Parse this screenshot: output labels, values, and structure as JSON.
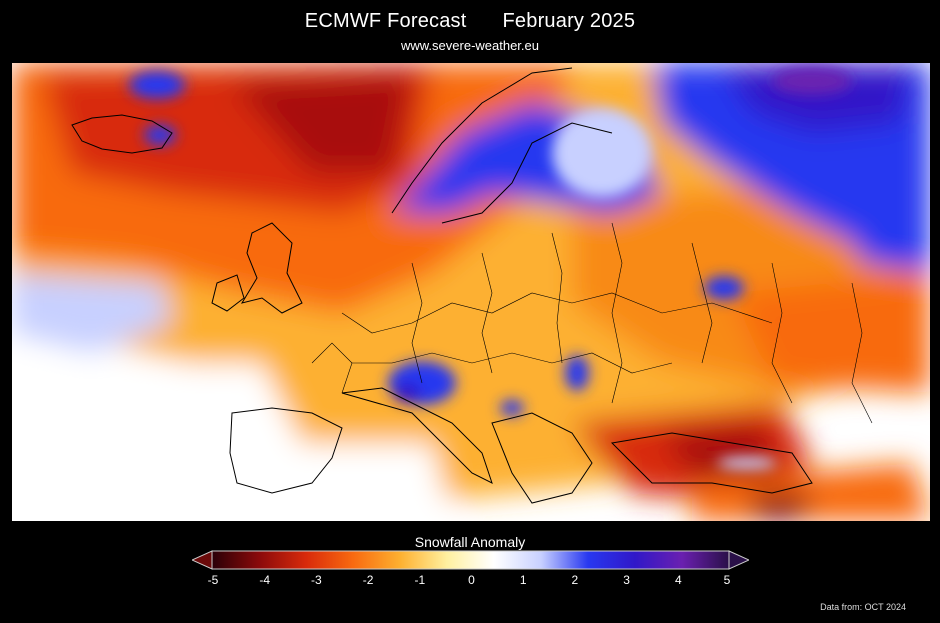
{
  "header": {
    "title": "ECMWF Forecast",
    "period": "February 2025",
    "site": "www.severe-weather.eu"
  },
  "map": {
    "variable": "Snowfall Anomaly",
    "region": "Europe",
    "background_color": "#ffffff",
    "border_color": "#000000"
  },
  "legend": {
    "title": "Snowfall Anomaly",
    "ticks": [
      "-5",
      "-4",
      "-3",
      "-2",
      "-1",
      "0",
      "1",
      "2",
      "3",
      "4",
      "5"
    ],
    "range": [
      -5,
      5
    ],
    "colors": [
      "#2a0008",
      "#8a0a0a",
      "#d82a0a",
      "#f86a10",
      "#fdb030",
      "#fff0a0",
      "#ffffff",
      "#c8d0ff",
      "#2838f0",
      "#3018c8",
      "#6a20b0",
      "#2a1048"
    ]
  },
  "footer": {
    "source": "Data from: OCT 2024"
  }
}
